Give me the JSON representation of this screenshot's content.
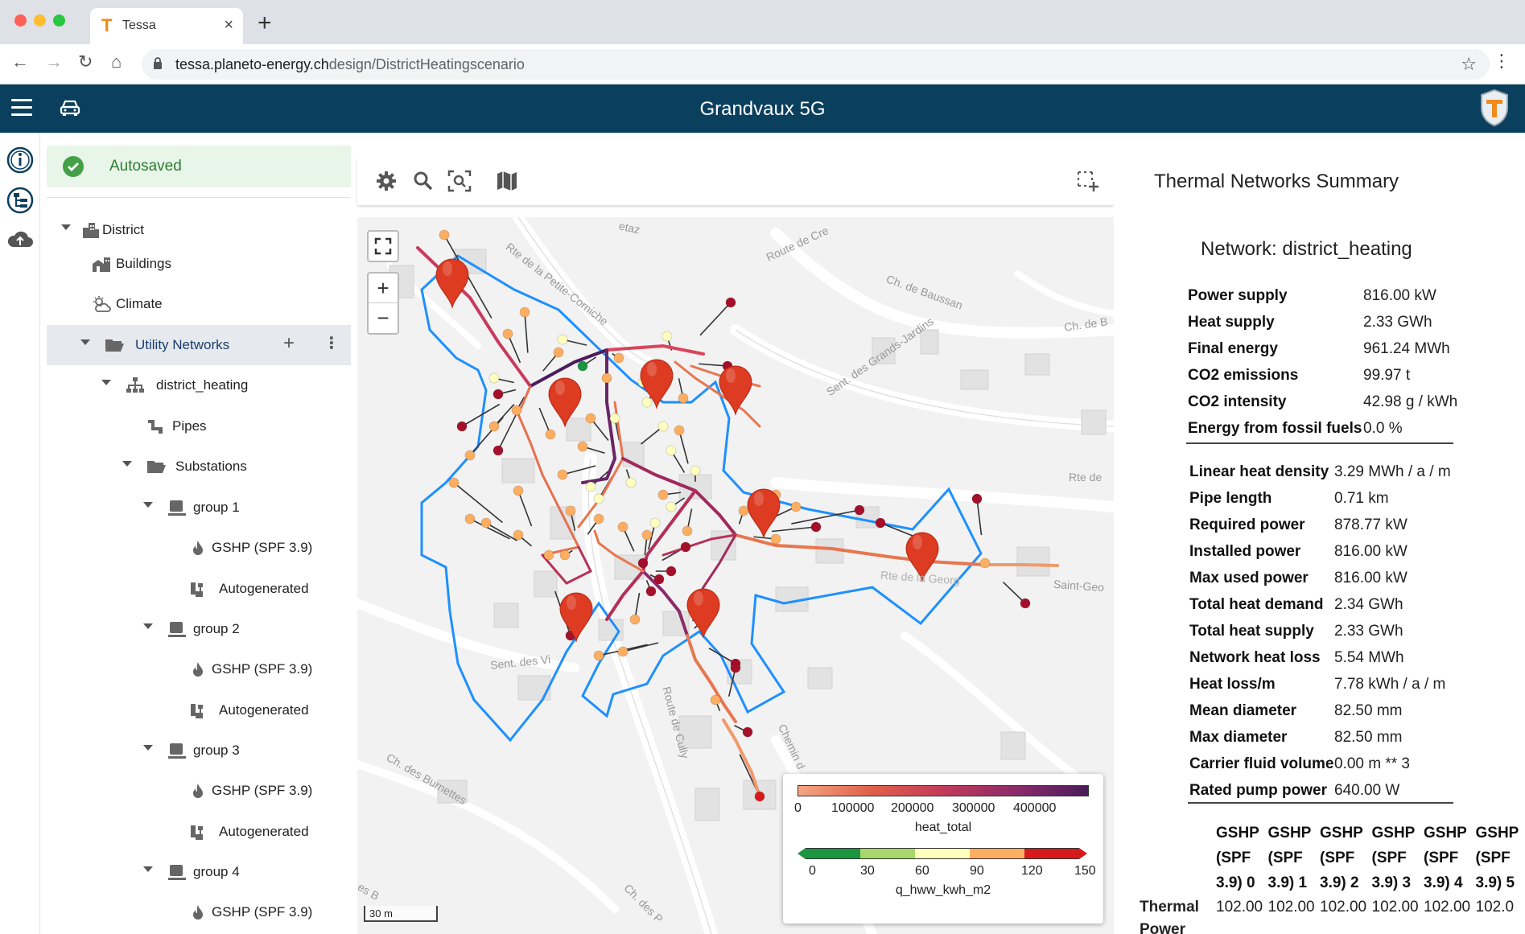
{
  "browser": {
    "tab_title": "Tessa",
    "url_host": "tessa.planeto-energy.ch",
    "url_path": "design/DistrictHeatingscenario"
  },
  "app": {
    "title": "Grandvaux 5G"
  },
  "status": {
    "autosaved": "Autosaved"
  },
  "tree": {
    "district": "District",
    "buildings": "Buildings",
    "climate": "Climate",
    "utility_networks": "Utility Networks",
    "district_heating": "district_heating",
    "pipes": "Pipes",
    "substations": "Substations",
    "groups": [
      {
        "label": "group 1",
        "gshp": "GSHP (SPF 3.9)",
        "auto": "Autogenerated"
      },
      {
        "label": "group 2",
        "gshp": "GSHP (SPF 3.9)",
        "auto": "Autogenerated"
      },
      {
        "label": "group 3",
        "gshp": "GSHP (SPF 3.9)",
        "auto": "Autogenerated"
      },
      {
        "label": "group 4",
        "gshp": "GSHP (SPF 3.9)"
      }
    ]
  },
  "map": {
    "street_labels": [
      "etaz",
      "Route de Cre",
      "Rte de la Petite-Corniche",
      "Ch. de Baussan",
      "Ch. de B",
      "Sent. des Grands-Jardins",
      "Rte de",
      "Saint-Geo",
      "Sent. des Vi",
      "Route de Cully",
      "Ch. des Burnettes",
      "Chemin d",
      "es B",
      "Ch. des P",
      "Rte de la Georg"
    ],
    "scale": "30 m",
    "legend": {
      "heat_total": {
        "label": "heat_total",
        "ticks": [
          "0",
          "100000",
          "200000",
          "300000",
          "400000"
        ]
      },
      "q_hww": {
        "label": "q_hww_kwh_m2",
        "ticks": [
          "0",
          "30",
          "60",
          "90",
          "120",
          "150"
        ],
        "colors": [
          "#1a9641",
          "#a6d96a",
          "#ffffbf",
          "#fdae61",
          "#d7191c"
        ]
      }
    }
  },
  "summary": {
    "title": "Thermal Networks Summary",
    "network_title": "Network: district_heating",
    "block1": [
      {
        "k": "Power supply",
        "v": "816.00 kW"
      },
      {
        "k": "Heat supply",
        "v": "2.33 GWh"
      },
      {
        "k": "Final energy",
        "v": "961.24 MWh"
      },
      {
        "k": "CO2 emissions",
        "v": "99.97 t"
      },
      {
        "k": "CO2 intensity",
        "v": "42.98 g / kWh"
      },
      {
        "k": "Energy from fossil fuels",
        "v": "0.0 %"
      }
    ],
    "block2": [
      {
        "k": "Linear heat density",
        "v": "3.29 MWh / a / m"
      },
      {
        "k": "Pipe length",
        "v": "0.71 km"
      },
      {
        "k": "Required power",
        "v": "878.77 kW"
      },
      {
        "k": "Installed power",
        "v": "816.00 kW"
      },
      {
        "k": "Max used power",
        "v": "816.00 kW"
      },
      {
        "k": "Total heat demand",
        "v": "2.34 GWh"
      },
      {
        "k": "Total heat supply",
        "v": "2.33 GWh"
      },
      {
        "k": "Network heat loss",
        "v": "5.54 MWh"
      },
      {
        "k": "Heat loss/m",
        "v": "7.78 kWh / a / m"
      },
      {
        "k": "Mean diameter",
        "v": "82.50 mm"
      },
      {
        "k": "Max diameter",
        "v": "82.50 mm"
      },
      {
        "k": "Carrier fluid volume",
        "v": "0.00 m ** 3"
      },
      {
        "k": "Rated pump power",
        "v": "640.00 W"
      }
    ],
    "gshp_columns": [
      "GSHP (SPF 3.9) 0",
      "GSHP (SPF 3.9) 1",
      "GSHP (SPF 3.9) 2",
      "GSHP (SPF 3.9) 3",
      "GSHP (SPF 3.9) 4",
      "GSHP (SPF 3.9) 5"
    ],
    "thermal_label": "Thermal",
    "power_label": "Power",
    "thermal_values": [
      "102.00",
      "102.00",
      "102.00",
      "102.00",
      "102.00",
      "102.0"
    ]
  }
}
